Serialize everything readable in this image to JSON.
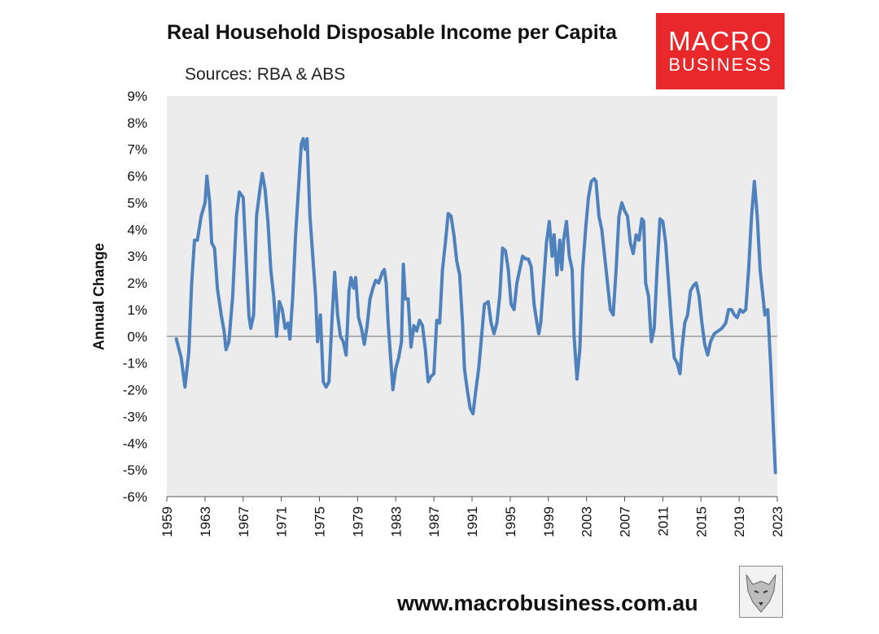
{
  "header": {
    "title": "Real Household Disposable Income per Capita",
    "subtitle": "Sources: RBA & ABS"
  },
  "logo": {
    "line1": "MACRO",
    "line2": "BUSINESS"
  },
  "footer": {
    "url": "www.macrobusiness.com.au"
  },
  "colors": {
    "line": "#4f81bd",
    "plot_bg": "#ececec",
    "logo_bg": "#e8282a"
  },
  "icons": {
    "footer_image": "wolf-icon"
  },
  "chart_data": {
    "type": "line",
    "title": "Real Household Disposable Income per Capita",
    "subtitle": "Sources: RBA & ABS",
    "xlabel": "",
    "ylabel": "Annual Change",
    "xlim": [
      1959,
      2023
    ],
    "ylim": [
      -6,
      9
    ],
    "x_ticks": [
      1959,
      1963,
      1967,
      1971,
      1975,
      1979,
      1983,
      1987,
      1991,
      1995,
      1999,
      2003,
      2007,
      2011,
      2015,
      2019,
      2023
    ],
    "y_ticks": [
      -6,
      -5,
      -4,
      -3,
      -2,
      -1,
      0,
      1,
      2,
      3,
      4,
      5,
      6,
      7,
      8,
      9
    ],
    "y_tick_format": "percent",
    "grid": false,
    "legend": "none",
    "series": [
      {
        "values": [
          [
            1960.0,
            -0.1
          ],
          [
            1960.5,
            -0.8
          ],
          [
            1960.9,
            -1.9
          ],
          [
            1961.3,
            -0.6
          ],
          [
            1961.6,
            2.0
          ],
          [
            1961.9,
            3.6
          ],
          [
            1962.2,
            3.6
          ],
          [
            1962.6,
            4.5
          ],
          [
            1963.0,
            5.0
          ],
          [
            1963.2,
            6.0
          ],
          [
            1963.5,
            5.0
          ],
          [
            1963.7,
            3.5
          ],
          [
            1964.0,
            3.3
          ],
          [
            1964.3,
            1.8
          ],
          [
            1964.7,
            0.8
          ],
          [
            1965.0,
            0.2
          ],
          [
            1965.2,
            -0.5
          ],
          [
            1965.5,
            -0.2
          ],
          [
            1965.9,
            1.5
          ],
          [
            1966.3,
            4.5
          ],
          [
            1966.6,
            5.4
          ],
          [
            1967.0,
            5.2
          ],
          [
            1967.3,
            3.0
          ],
          [
            1967.6,
            0.8
          ],
          [
            1967.8,
            0.3
          ],
          [
            1968.1,
            0.8
          ],
          [
            1968.4,
            4.5
          ],
          [
            1968.8,
            5.6
          ],
          [
            1969.0,
            6.1
          ],
          [
            1969.3,
            5.5
          ],
          [
            1969.6,
            4.3
          ],
          [
            1969.9,
            2.5
          ],
          [
            1970.2,
            1.5
          ],
          [
            1970.5,
            0.0
          ],
          [
            1970.8,
            1.3
          ],
          [
            1971.1,
            1.0
          ],
          [
            1971.4,
            0.3
          ],
          [
            1971.7,
            0.5
          ],
          [
            1971.9,
            -0.1
          ],
          [
            1972.2,
            1.5
          ],
          [
            1972.5,
            3.8
          ],
          [
            1972.8,
            5.5
          ],
          [
            1973.1,
            7.2
          ],
          [
            1973.3,
            7.4
          ],
          [
            1973.5,
            7.0
          ],
          [
            1973.7,
            7.4
          ],
          [
            1974.0,
            4.5
          ],
          [
            1974.3,
            3.0
          ],
          [
            1974.6,
            1.5
          ],
          [
            1974.8,
            -0.2
          ],
          [
            1975.1,
            0.8
          ],
          [
            1975.4,
            -1.7
          ],
          [
            1975.7,
            -1.9
          ],
          [
            1976.0,
            -1.7
          ],
          [
            1976.3,
            0.5
          ],
          [
            1976.6,
            2.4
          ],
          [
            1976.9,
            0.8
          ],
          [
            1977.2,
            0.0
          ],
          [
            1977.5,
            -0.2
          ],
          [
            1977.8,
            -0.7
          ],
          [
            1978.1,
            1.7
          ],
          [
            1978.3,
            2.2
          ],
          [
            1978.6,
            1.8
          ],
          [
            1978.8,
            2.2
          ],
          [
            1979.1,
            0.7
          ],
          [
            1979.4,
            0.3
          ],
          [
            1979.7,
            -0.3
          ],
          [
            1980.0,
            0.4
          ],
          [
            1980.3,
            1.4
          ],
          [
            1980.6,
            1.8
          ],
          [
            1980.9,
            2.1
          ],
          [
            1981.2,
            2.0
          ],
          [
            1981.6,
            2.4
          ],
          [
            1981.8,
            2.5
          ],
          [
            1982.0,
            2.0
          ],
          [
            1982.2,
            0.5
          ],
          [
            1982.5,
            -1.0
          ],
          [
            1982.7,
            -2.0
          ],
          [
            1983.0,
            -1.2
          ],
          [
            1983.3,
            -0.8
          ],
          [
            1983.6,
            -0.2
          ],
          [
            1983.8,
            2.7
          ],
          [
            1984.0,
            1.4
          ],
          [
            1984.3,
            1.4
          ],
          [
            1984.6,
            -0.4
          ],
          [
            1984.9,
            0.4
          ],
          [
            1985.2,
            0.2
          ],
          [
            1985.5,
            0.6
          ],
          [
            1985.8,
            0.4
          ],
          [
            1986.1,
            -0.5
          ],
          [
            1986.4,
            -1.7
          ],
          [
            1986.7,
            -1.5
          ],
          [
            1987.0,
            -1.4
          ],
          [
            1987.3,
            0.6
          ],
          [
            1987.6,
            0.5
          ],
          [
            1987.9,
            2.5
          ],
          [
            1988.2,
            3.5
          ],
          [
            1988.5,
            4.6
          ],
          [
            1988.8,
            4.5
          ],
          [
            1989.1,
            3.8
          ],
          [
            1989.4,
            2.8
          ],
          [
            1989.7,
            2.3
          ],
          [
            1990.0,
            0.5
          ],
          [
            1990.2,
            -1.2
          ],
          [
            1990.5,
            -2.0
          ],
          [
            1990.8,
            -2.7
          ],
          [
            1991.1,
            -2.9
          ],
          [
            1991.4,
            -2.0
          ],
          [
            1991.7,
            -1.2
          ],
          [
            1992.0,
            0.0
          ],
          [
            1992.3,
            1.2
          ],
          [
            1992.7,
            1.3
          ],
          [
            1993.0,
            0.5
          ],
          [
            1993.3,
            0.1
          ],
          [
            1993.6,
            0.5
          ],
          [
            1993.9,
            1.5
          ],
          [
            1994.2,
            3.3
          ],
          [
            1994.5,
            3.2
          ],
          [
            1994.8,
            2.5
          ],
          [
            1995.1,
            1.2
          ],
          [
            1995.4,
            1.0
          ],
          [
            1995.7,
            2.0
          ],
          [
            1996.0,
            2.5
          ],
          [
            1996.3,
            3.0
          ],
          [
            1996.6,
            2.9
          ],
          [
            1996.9,
            2.9
          ],
          [
            1997.2,
            2.6
          ],
          [
            1997.5,
            1.2
          ],
          [
            1997.8,
            0.5
          ],
          [
            1998.0,
            0.1
          ],
          [
            1998.2,
            0.5
          ],
          [
            1998.5,
            2.0
          ],
          [
            1998.8,
            3.5
          ],
          [
            1999.1,
            4.3
          ],
          [
            1999.4,
            3.0
          ],
          [
            1999.6,
            3.8
          ],
          [
            1999.9,
            2.3
          ],
          [
            2000.2,
            3.6
          ],
          [
            2000.4,
            2.5
          ],
          [
            2000.6,
            3.6
          ],
          [
            2000.9,
            4.3
          ],
          [
            2001.2,
            3.0
          ],
          [
            2001.5,
            2.5
          ],
          [
            2001.7,
            0.0
          ],
          [
            2002.0,
            -1.6
          ],
          [
            2002.3,
            -0.5
          ],
          [
            2002.6,
            2.5
          ],
          [
            2002.9,
            4.0
          ],
          [
            2003.2,
            5.2
          ],
          [
            2003.5,
            5.8
          ],
          [
            2003.8,
            5.9
          ],
          [
            2004.0,
            5.8
          ],
          [
            2004.3,
            4.5
          ],
          [
            2004.6,
            4.0
          ],
          [
            2004.9,
            3.0
          ],
          [
            2005.2,
            2.0
          ],
          [
            2005.5,
            1.0
          ],
          [
            2005.8,
            0.8
          ],
          [
            2006.1,
            2.5
          ],
          [
            2006.4,
            4.5
          ],
          [
            2006.7,
            5.0
          ],
          [
            2007.0,
            4.7
          ],
          [
            2007.3,
            4.5
          ],
          [
            2007.6,
            3.5
          ],
          [
            2007.9,
            3.1
          ],
          [
            2008.2,
            3.8
          ],
          [
            2008.5,
            3.6
          ],
          [
            2008.8,
            4.4
          ],
          [
            2009.0,
            4.3
          ],
          [
            2009.2,
            2.0
          ],
          [
            2009.5,
            1.5
          ],
          [
            2009.8,
            -0.2
          ],
          [
            2010.1,
            0.3
          ],
          [
            2010.4,
            2.5
          ],
          [
            2010.7,
            4.4
          ],
          [
            2011.0,
            4.3
          ],
          [
            2011.3,
            3.5
          ],
          [
            2011.6,
            2.0
          ],
          [
            2011.9,
            0.5
          ],
          [
            2012.2,
            -0.8
          ],
          [
            2012.5,
            -1.0
          ],
          [
            2012.8,
            -1.4
          ],
          [
            2013.0,
            -0.5
          ],
          [
            2013.3,
            0.5
          ],
          [
            2013.6,
            0.8
          ],
          [
            2013.9,
            1.7
          ],
          [
            2014.2,
            1.9
          ],
          [
            2014.5,
            2.0
          ],
          [
            2014.8,
            1.5
          ],
          [
            2015.1,
            0.5
          ],
          [
            2015.4,
            -0.3
          ],
          [
            2015.7,
            -0.7
          ],
          [
            2016.0,
            -0.2
          ],
          [
            2016.4,
            0.1
          ],
          [
            2016.8,
            0.2
          ],
          [
            2017.2,
            0.3
          ],
          [
            2017.6,
            0.5
          ],
          [
            2017.9,
            1.0
          ],
          [
            2018.2,
            1.0
          ],
          [
            2018.5,
            0.8
          ],
          [
            2018.8,
            0.7
          ],
          [
            2019.1,
            1.0
          ],
          [
            2019.4,
            0.9
          ],
          [
            2019.7,
            1.0
          ],
          [
            2020.0,
            2.5
          ],
          [
            2020.3,
            4.5
          ],
          [
            2020.6,
            5.8
          ],
          [
            2020.9,
            4.5
          ],
          [
            2021.2,
            2.5
          ],
          [
            2021.5,
            1.5
          ],
          [
            2021.7,
            0.8
          ],
          [
            2022.0,
            1.0
          ],
          [
            2022.3,
            -1.0
          ],
          [
            2022.6,
            -3.5
          ],
          [
            2022.8,
            -5.1
          ]
        ]
      }
    ]
  }
}
